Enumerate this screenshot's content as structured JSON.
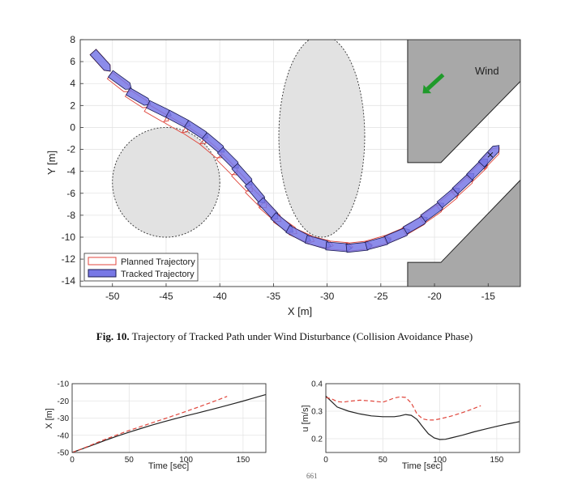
{
  "figure": {
    "caption_label": "Fig. 10.",
    "caption_text": "Trajectory of Tracked Path under Wind Disturbance (Collision Avoidance Phase)",
    "page_number": "661"
  },
  "colors": {
    "planned": "#e0463c",
    "tracked_fill": "#7878e6",
    "tracked_edge": "#1a1a50",
    "obstacle": "#e2e2e2",
    "wall": "#a8a8a8",
    "wind_arrow": "#1f9a2a",
    "sim_line": "#222222",
    "ref_line": "#e0463c"
  },
  "chart_data": [
    {
      "type": "scatter",
      "title": "",
      "xlabel": "X [m]",
      "ylabel": "Y [m]",
      "xlim": [
        -53,
        -12
      ],
      "ylim": [
        -14.5,
        8
      ],
      "xticks": [
        -50,
        -45,
        -40,
        -35,
        -30,
        -25,
        -20,
        -15
      ],
      "yticks": [
        -14,
        -12,
        -10,
        -8,
        -6,
        -4,
        -2,
        0,
        2,
        4,
        6,
        8
      ],
      "grid": true,
      "legend_position": "bottom-left",
      "legend": [
        "Planned Trajectory",
        "Tracked Trajectory"
      ],
      "annotations": [
        "Wind"
      ],
      "obstacles": [
        {
          "shape": "circle",
          "center": [
            -45,
            -5
          ],
          "radius": 5
        },
        {
          "shape": "ellipse",
          "center": [
            -30.5,
            -0.8
          ],
          "rx": 4,
          "ry": 9.2
        }
      ],
      "walls": [
        {
          "points": [
            [
              -22.5,
              8
            ],
            [
              -12,
              8
            ],
            [
              -12,
              4.2
            ],
            [
              -19.4,
              -3.2
            ],
            [
              -22.5,
              -3.2
            ]
          ]
        },
        {
          "points": [
            [
              -22.5,
              -14.7
            ],
            [
              -12,
              -14.7
            ],
            [
              -12,
              -4.8
            ],
            [
              -19.4,
              -12.3
            ],
            [
              -22.5,
              -12.3
            ]
          ]
        }
      ],
      "wind_arrow": {
        "from": [
          -19.2,
          4.8
        ],
        "to": [
          -21.1,
          3.1
        ]
      },
      "planned_poses": [
        {
          "x": -51,
          "y": 6,
          "heading_deg": -48
        },
        {
          "x": -49.3,
          "y": 4,
          "heading_deg": -38
        },
        {
          "x": -47.6,
          "y": 2.5,
          "heading_deg": -33
        },
        {
          "x": -45.8,
          "y": 1.2,
          "heading_deg": -30
        },
        {
          "x": -44,
          "y": 0.2,
          "heading_deg": -30
        },
        {
          "x": -42.3,
          "y": -0.8,
          "heading_deg": -33
        },
        {
          "x": -40.7,
          "y": -2,
          "heading_deg": -40
        },
        {
          "x": -39.2,
          "y": -3.5,
          "heading_deg": -45
        },
        {
          "x": -37.8,
          "y": -5,
          "heading_deg": -46
        },
        {
          "x": -36.5,
          "y": -6.5,
          "heading_deg": -45
        },
        {
          "x": -35.2,
          "y": -7.8,
          "heading_deg": -41
        },
        {
          "x": -33.8,
          "y": -9,
          "heading_deg": -35
        },
        {
          "x": -32.3,
          "y": -9.9,
          "heading_deg": -24
        },
        {
          "x": -30.6,
          "y": -10.5,
          "heading_deg": -14
        },
        {
          "x": -28.8,
          "y": -10.8,
          "heading_deg": -5
        },
        {
          "x": -27,
          "y": -10.8,
          "heading_deg": 6
        },
        {
          "x": -25.2,
          "y": -10.4,
          "heading_deg": 16
        },
        {
          "x": -23.5,
          "y": -9.8,
          "heading_deg": 23
        },
        {
          "x": -21.8,
          "y": -8.9,
          "heading_deg": 30
        },
        {
          "x": -20.2,
          "y": -7.8,
          "heading_deg": 35
        },
        {
          "x": -18.7,
          "y": -6.6,
          "heading_deg": 39
        },
        {
          "x": -17.3,
          "y": -5.3,
          "heading_deg": 42
        },
        {
          "x": -15.9,
          "y": -3.9,
          "heading_deg": 44
        },
        {
          "x": -14.8,
          "y": -2.7,
          "heading_deg": 46
        }
      ],
      "tracked_poses": [
        {
          "x": -51,
          "y": 6,
          "heading_deg": -48
        },
        {
          "x": -49.2,
          "y": 4.2,
          "heading_deg": -36
        },
        {
          "x": -47.5,
          "y": 2.7,
          "heading_deg": -30
        },
        {
          "x": -45.6,
          "y": 1.6,
          "heading_deg": -26
        },
        {
          "x": -43.8,
          "y": 0.7,
          "heading_deg": -28
        },
        {
          "x": -42.1,
          "y": -0.3,
          "heading_deg": -33
        },
        {
          "x": -40.5,
          "y": -1.5,
          "heading_deg": -40
        },
        {
          "x": -39.1,
          "y": -2.9,
          "heading_deg": -45
        },
        {
          "x": -37.8,
          "y": -4.4,
          "heading_deg": -48
        },
        {
          "x": -36.6,
          "y": -6,
          "heading_deg": -50
        },
        {
          "x": -35.4,
          "y": -7.5,
          "heading_deg": -47
        },
        {
          "x": -34.1,
          "y": -8.8,
          "heading_deg": -40
        },
        {
          "x": -32.6,
          "y": -9.8,
          "heading_deg": -28
        },
        {
          "x": -30.8,
          "y": -10.5,
          "heading_deg": -16
        },
        {
          "x": -28.9,
          "y": -10.9,
          "heading_deg": -5
        },
        {
          "x": -27,
          "y": -10.9,
          "heading_deg": 6
        },
        {
          "x": -25.2,
          "y": -10.5,
          "heading_deg": 15
        },
        {
          "x": -23.4,
          "y": -9.8,
          "heading_deg": 23
        },
        {
          "x": -21.7,
          "y": -8.8,
          "heading_deg": 30
        },
        {
          "x": -20.1,
          "y": -7.6,
          "heading_deg": 36
        },
        {
          "x": -18.6,
          "y": -6.3,
          "heading_deg": 40
        },
        {
          "x": -17.2,
          "y": -5,
          "heading_deg": 43
        },
        {
          "x": -15.9,
          "y": -3.7,
          "heading_deg": 45
        },
        {
          "x": -14.8,
          "y": -2.5,
          "heading_deg": 47
        }
      ]
    },
    {
      "type": "line",
      "title": "",
      "xlabel": "Time [sec]",
      "ylabel": "X [m]",
      "xlim": [
        0,
        170
      ],
      "ylim": [
        -50,
        -10
      ],
      "xticks": [
        0,
        50,
        100,
        150
      ],
      "yticks": [
        -10,
        -20,
        -30,
        -40,
        -50
      ],
      "grid": true,
      "series": [
        {
          "style": "solid",
          "x": [
            0,
            10,
            20,
            30,
            40,
            50,
            60,
            70,
            80,
            90,
            100,
            110,
            120,
            130,
            140,
            150,
            160,
            170
          ],
          "values": [
            -50,
            -47.6,
            -45.2,
            -42.7,
            -40.4,
            -38.2,
            -36.1,
            -34.1,
            -32.2,
            -30.4,
            -28.7,
            -27.1,
            -25.4,
            -23.7,
            -21.9,
            -20.1,
            -18.2,
            -16.3
          ]
        },
        {
          "style": "dashed",
          "x": [
            0,
            10,
            20,
            30,
            40,
            50,
            60,
            70,
            80,
            90,
            100,
            110,
            120,
            130,
            136
          ],
          "values": [
            -50,
            -47.5,
            -44.8,
            -42.1,
            -39.6,
            -37.2,
            -35,
            -32.8,
            -30.6,
            -28.4,
            -26.1,
            -23.8,
            -21.4,
            -18.9,
            -17.4
          ]
        }
      ]
    },
    {
      "type": "line",
      "title": "",
      "xlabel": "Time [sec]",
      "ylabel": "u [m/s]",
      "xlim": [
        0,
        170
      ],
      "ylim": [
        0.15,
        0.4
      ],
      "xticks": [
        0,
        50,
        100,
        150
      ],
      "yticks": [
        0.2,
        0.3,
        0.4
      ],
      "grid": true,
      "series": [
        {
          "style": "solid",
          "x": [
            0,
            5,
            10,
            20,
            30,
            40,
            50,
            60,
            65,
            70,
            75,
            80,
            85,
            90,
            95,
            100,
            105,
            110,
            120,
            130,
            140,
            150,
            160,
            170
          ],
          "values": [
            0.355,
            0.335,
            0.315,
            0.3,
            0.29,
            0.283,
            0.28,
            0.28,
            0.283,
            0.288,
            0.285,
            0.27,
            0.243,
            0.218,
            0.203,
            0.197,
            0.198,
            0.203,
            0.213,
            0.225,
            0.235,
            0.245,
            0.254,
            0.262
          ]
        },
        {
          "style": "dashed",
          "x": [
            0,
            5,
            10,
            15,
            20,
            30,
            40,
            50,
            55,
            60,
            65,
            70,
            75,
            80,
            85,
            90,
            95,
            100,
            110,
            120,
            130,
            136
          ],
          "values": [
            0.35,
            0.345,
            0.335,
            0.333,
            0.336,
            0.34,
            0.337,
            0.333,
            0.34,
            0.348,
            0.352,
            0.35,
            0.33,
            0.29,
            0.272,
            0.268,
            0.268,
            0.272,
            0.282,
            0.295,
            0.31,
            0.32
          ]
        }
      ]
    }
  ]
}
